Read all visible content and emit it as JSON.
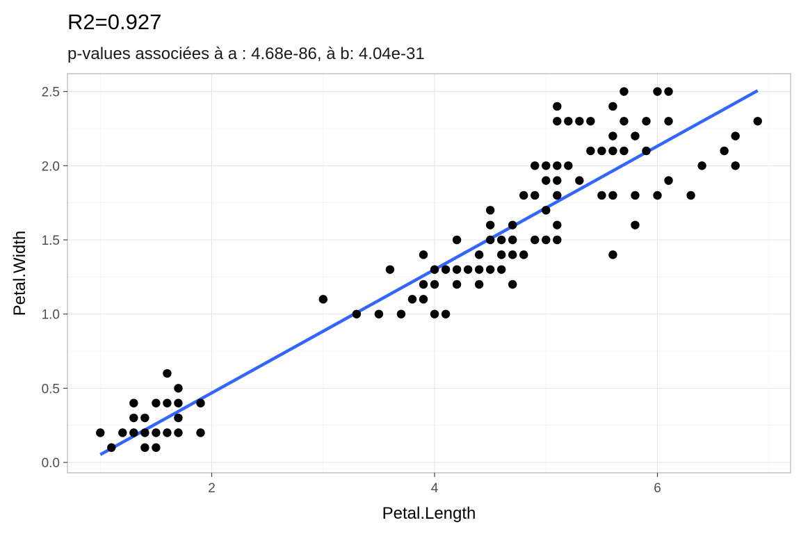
{
  "chart_data": {
    "type": "scatter",
    "title": "R2=0.927",
    "subtitle": "p-values associées à a : 4.68e-86, à b: 4.04e-31",
    "xlabel": "Petal.Length",
    "ylabel": "Petal.Width",
    "xlim": [
      0.705,
      7.195
    ],
    "ylim": [
      -0.07,
      2.62
    ],
    "x_ticks": [
      2,
      4,
      6
    ],
    "y_ticks": [
      0.0,
      0.5,
      1.0,
      1.5,
      2.0,
      2.5
    ],
    "x_tick_labels": [
      "2",
      "4",
      "6"
    ],
    "y_tick_labels": [
      "0.0",
      "0.5",
      "1.0",
      "1.5",
      "2.0",
      "2.5"
    ],
    "grid": true,
    "legend": "none",
    "point_color": "#000000",
    "line_color": "#3366FF",
    "panel_border_color": "#b3b3b3",
    "points": [
      [
        1.0,
        0.2
      ],
      [
        1.1,
        0.1
      ],
      [
        1.2,
        0.2
      ],
      [
        1.3,
        0.2
      ],
      [
        1.3,
        0.3
      ],
      [
        1.3,
        0.4
      ],
      [
        1.4,
        0.1
      ],
      [
        1.4,
        0.2
      ],
      [
        1.4,
        0.3
      ],
      [
        1.5,
        0.1
      ],
      [
        1.5,
        0.2
      ],
      [
        1.5,
        0.4
      ],
      [
        1.6,
        0.2
      ],
      [
        1.6,
        0.4
      ],
      [
        1.6,
        0.6
      ],
      [
        1.7,
        0.2
      ],
      [
        1.7,
        0.3
      ],
      [
        1.7,
        0.4
      ],
      [
        1.7,
        0.5
      ],
      [
        1.9,
        0.2
      ],
      [
        1.9,
        0.4
      ],
      [
        3.0,
        1.1
      ],
      [
        3.3,
        1.0
      ],
      [
        3.5,
        1.0
      ],
      [
        3.6,
        1.3
      ],
      [
        3.7,
        1.0
      ],
      [
        3.8,
        1.1
      ],
      [
        3.9,
        1.1
      ],
      [
        3.9,
        1.2
      ],
      [
        3.9,
        1.4
      ],
      [
        4.0,
        1.0
      ],
      [
        4.0,
        1.2
      ],
      [
        4.0,
        1.3
      ],
      [
        4.1,
        1.0
      ],
      [
        4.1,
        1.3
      ],
      [
        4.2,
        1.2
      ],
      [
        4.2,
        1.3
      ],
      [
        4.2,
        1.5
      ],
      [
        4.3,
        1.3
      ],
      [
        4.4,
        1.2
      ],
      [
        4.4,
        1.3
      ],
      [
        4.4,
        1.4
      ],
      [
        4.5,
        1.3
      ],
      [
        4.5,
        1.5
      ],
      [
        4.5,
        1.6
      ],
      [
        4.5,
        1.7
      ],
      [
        4.6,
        1.3
      ],
      [
        4.6,
        1.4
      ],
      [
        4.6,
        1.5
      ],
      [
        4.7,
        1.2
      ],
      [
        4.7,
        1.4
      ],
      [
        4.7,
        1.5
      ],
      [
        4.7,
        1.6
      ],
      [
        4.8,
        1.4
      ],
      [
        4.8,
        1.8
      ],
      [
        4.9,
        1.5
      ],
      [
        4.9,
        1.8
      ],
      [
        4.9,
        2.0
      ],
      [
        5.0,
        1.5
      ],
      [
        5.0,
        1.7
      ],
      [
        5.0,
        1.9
      ],
      [
        5.0,
        2.0
      ],
      [
        5.1,
        1.5
      ],
      [
        5.1,
        1.6
      ],
      [
        5.1,
        1.8
      ],
      [
        5.1,
        1.9
      ],
      [
        5.1,
        2.0
      ],
      [
        5.1,
        2.3
      ],
      [
        5.1,
        2.4
      ],
      [
        5.2,
        2.0
      ],
      [
        5.2,
        2.3
      ],
      [
        5.3,
        1.9
      ],
      [
        5.3,
        2.3
      ],
      [
        5.4,
        2.1
      ],
      [
        5.4,
        2.3
      ],
      [
        5.5,
        1.8
      ],
      [
        5.5,
        2.1
      ],
      [
        5.6,
        1.4
      ],
      [
        5.6,
        1.8
      ],
      [
        5.6,
        2.1
      ],
      [
        5.6,
        2.2
      ],
      [
        5.6,
        2.4
      ],
      [
        5.7,
        2.1
      ],
      [
        5.7,
        2.3
      ],
      [
        5.7,
        2.5
      ],
      [
        5.8,
        1.6
      ],
      [
        5.8,
        1.8
      ],
      [
        5.8,
        2.2
      ],
      [
        5.9,
        2.1
      ],
      [
        5.9,
        2.3
      ],
      [
        6.0,
        1.8
      ],
      [
        6.0,
        2.5
      ],
      [
        6.1,
        1.9
      ],
      [
        6.1,
        2.3
      ],
      [
        6.1,
        2.5
      ],
      [
        6.3,
        1.8
      ],
      [
        6.4,
        2.0
      ],
      [
        6.6,
        2.1
      ],
      [
        6.7,
        2.0
      ],
      [
        6.7,
        2.2
      ],
      [
        6.9,
        2.3
      ]
    ],
    "regression": {
      "slope": 0.4158,
      "intercept": -0.3631,
      "x_range": [
        1.0,
        6.9
      ]
    }
  }
}
